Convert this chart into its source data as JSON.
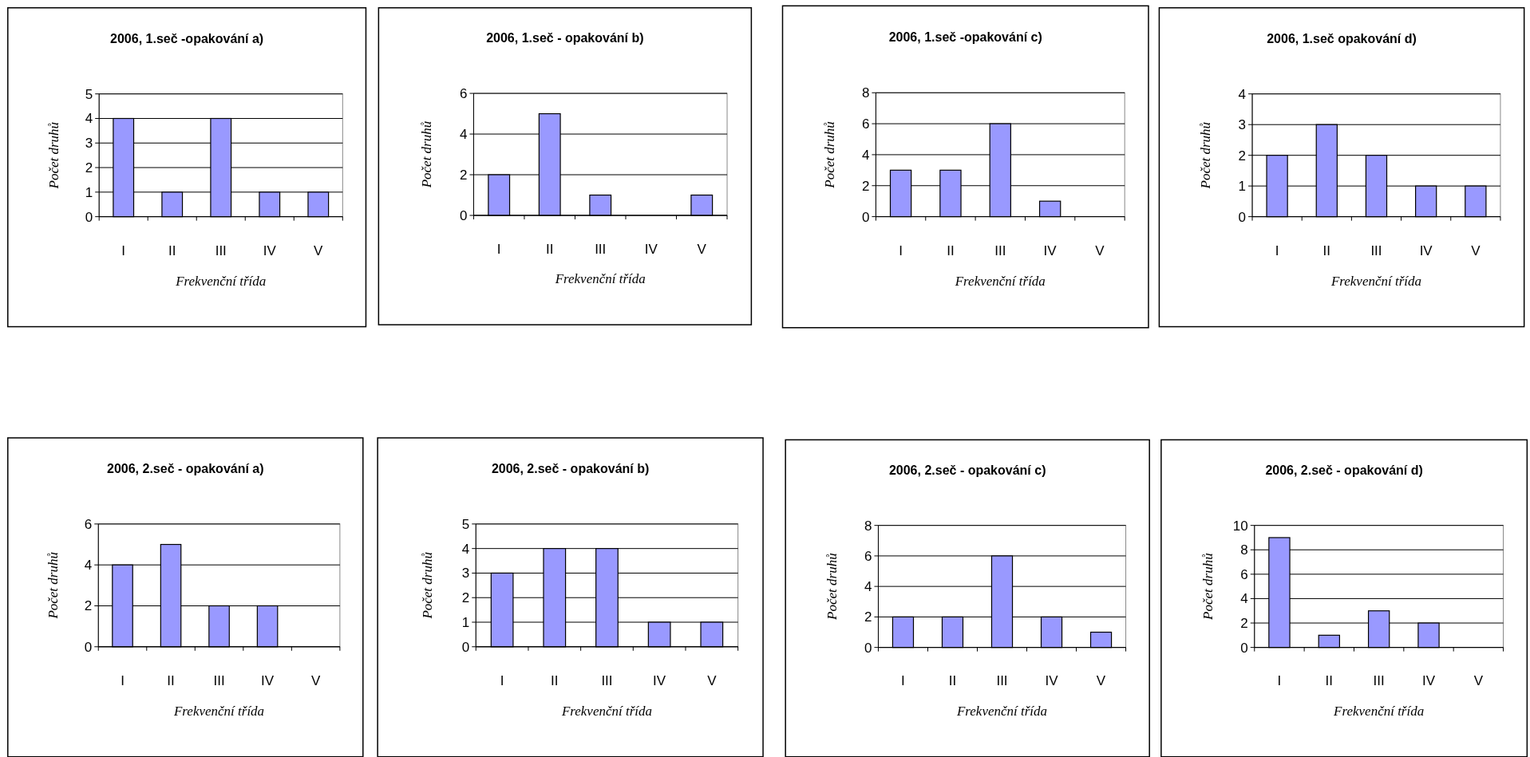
{
  "chart_data": [
    {
      "type": "bar",
      "title": "2006, 1.seč -opakování a)",
      "xlabel": "Frekvenční třída",
      "ylabel": "Počet druhů",
      "categories": [
        "I",
        "II",
        "III",
        "IV",
        "V"
      ],
      "values": [
        4,
        1,
        4,
        1,
        1
      ],
      "color": "#9999ff",
      "ylim": [
        0,
        5
      ],
      "yticks": [
        0,
        1,
        2,
        3,
        4,
        5
      ],
      "grid": "y"
    },
    {
      "type": "bar",
      "title": "2006, 1.seč - opakování b)",
      "xlabel": "Frekvenční třída",
      "ylabel": "Počet druhů",
      "categories": [
        "I",
        "II",
        "III",
        "IV",
        "V"
      ],
      "values": [
        2,
        5,
        1,
        0,
        1
      ],
      "color": "#9999ff",
      "ylim": [
        0,
        6
      ],
      "yticks": [
        0,
        2,
        4,
        6
      ],
      "grid": "y"
    },
    {
      "type": "bar",
      "title": "2006, 1.seč -opakování c)",
      "xlabel": "Frekvenční třída",
      "ylabel": "Počet druhů",
      "categories": [
        "I",
        "II",
        "III",
        "IV",
        "V"
      ],
      "values": [
        3,
        3,
        6,
        1,
        0
      ],
      "color": "#9999ff",
      "ylim": [
        0,
        8
      ],
      "yticks": [
        0,
        2,
        4,
        6,
        8
      ],
      "grid": "y"
    },
    {
      "type": "bar",
      "title": "2006, 1.seč opakování d)",
      "xlabel": "Frekvenční třída",
      "ylabel": "Počet druhů",
      "categories": [
        "I",
        "II",
        "III",
        "IV",
        "V"
      ],
      "values": [
        2,
        3,
        2,
        1,
        1
      ],
      "color": "#9999ff",
      "ylim": [
        0,
        4
      ],
      "yticks": [
        0,
        1,
        2,
        3,
        4
      ],
      "grid": "y"
    },
    {
      "type": "bar",
      "title": "2006, 2.seč - opakování a)",
      "xlabel": "Frekvenční třída",
      "ylabel": "Počet druhů",
      "categories": [
        "I",
        "II",
        "III",
        "IV",
        "V"
      ],
      "values": [
        4,
        5,
        2,
        2,
        0
      ],
      "color": "#9999ff",
      "ylim": [
        0,
        6
      ],
      "yticks": [
        0,
        2,
        4,
        6
      ],
      "grid": "y"
    },
    {
      "type": "bar",
      "title": "2006, 2.seč - opakování b)",
      "xlabel": "Frekvenční třída",
      "ylabel": "Počet druhů",
      "categories": [
        "I",
        "II",
        "III",
        "IV",
        "V"
      ],
      "values": [
        3,
        4,
        4,
        1,
        1
      ],
      "color": "#9999ff",
      "ylim": [
        0,
        5
      ],
      "yticks": [
        0,
        1,
        2,
        3,
        4,
        5
      ],
      "grid": "y"
    },
    {
      "type": "bar",
      "title": "2006, 2.seč - opakování c)",
      "xlabel": "Frekvenční třída",
      "ylabel": "Počet druhů",
      "categories": [
        "I",
        "II",
        "III",
        "IV",
        "V"
      ],
      "values": [
        2,
        2,
        6,
        2,
        1
      ],
      "color": "#9999ff",
      "ylim": [
        0,
        8
      ],
      "yticks": [
        0,
        2,
        4,
        6,
        8
      ],
      "grid": "y"
    },
    {
      "type": "bar",
      "title": "2006, 2.seč - opakování d)",
      "xlabel": "Frekvenční třída",
      "ylabel": "Počet druhů",
      "categories": [
        "I",
        "II",
        "III",
        "IV",
        "V"
      ],
      "values": [
        9,
        1,
        3,
        2,
        0
      ],
      "color": "#9999ff",
      "ylim": [
        0,
        10
      ],
      "yticks": [
        0,
        2,
        4,
        6,
        8,
        10
      ],
      "grid": "y"
    }
  ]
}
